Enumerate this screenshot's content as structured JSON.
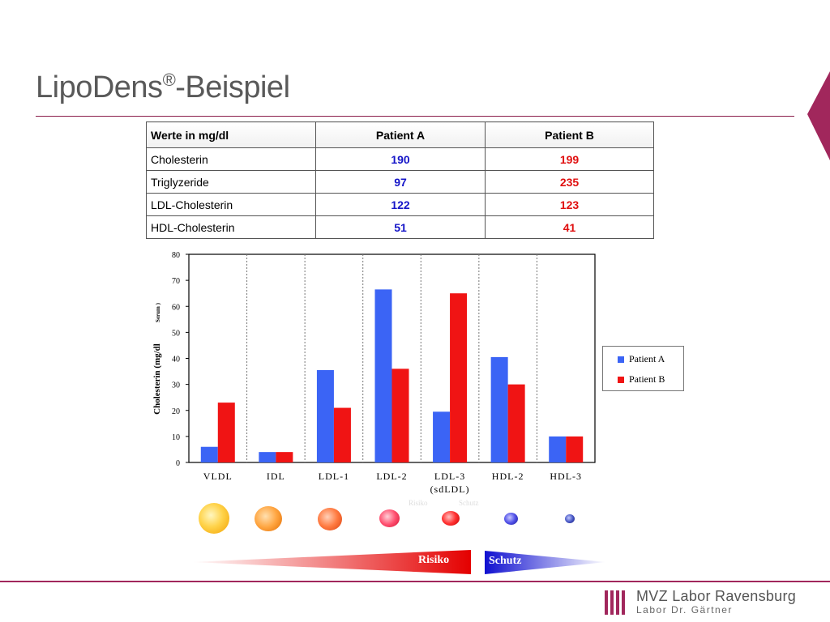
{
  "slide": {
    "title_main": "LipoDens",
    "title_sup": "®",
    "title_suffix": "-Beispiel"
  },
  "table": {
    "headers": [
      "Werte in mg/dl",
      "Patient A",
      "Patient B"
    ],
    "rows": [
      {
        "label": "Cholesterin",
        "a": "190",
        "b": "199"
      },
      {
        "label": "Triglyzeride",
        "a": "97",
        "b": "235"
      },
      {
        "label": "LDL-Cholesterin",
        "a": "122",
        "b": "123"
      },
      {
        "label": "HDL-Cholesterin",
        "a": "51",
        "b": "41"
      }
    ]
  },
  "chart_data": {
    "type": "bar",
    "ylabel": "Cholesterin (mg/dl",
    "ylabel_small": "Serum )",
    "categories": [
      "VLDL",
      "IDL",
      "LDL-1",
      "LDL-2",
      "LDL-3",
      "HDL-2",
      "HDL-3"
    ],
    "category_sublabels": [
      "",
      "",
      "",
      "",
      "(sdLDL)",
      "",
      ""
    ],
    "yticks": [
      0,
      10,
      20,
      30,
      40,
      50,
      60,
      70,
      80
    ],
    "ylim": [
      0,
      80
    ],
    "grid": "vertical dashed separators",
    "legend_position": "right",
    "series": [
      {
        "name": "Patient A",
        "color": "#3b64f5",
        "values": [
          6,
          4,
          35.5,
          66.5,
          19.5,
          40.5,
          10
        ]
      },
      {
        "name": "Patient B",
        "color": "#f01414",
        "values": [
          23,
          4,
          21,
          36,
          65,
          30,
          10
        ]
      }
    ]
  },
  "gradient": {
    "risiko_label": "Risiko",
    "schutz_label": "Schutz",
    "faint_left": "Risiko",
    "faint_right": "Schutz"
  },
  "logo": {
    "line1": "MVZ Labor Ravensburg",
    "line2": "Labor Dr. Gärtner",
    "color": "#a1275c"
  }
}
